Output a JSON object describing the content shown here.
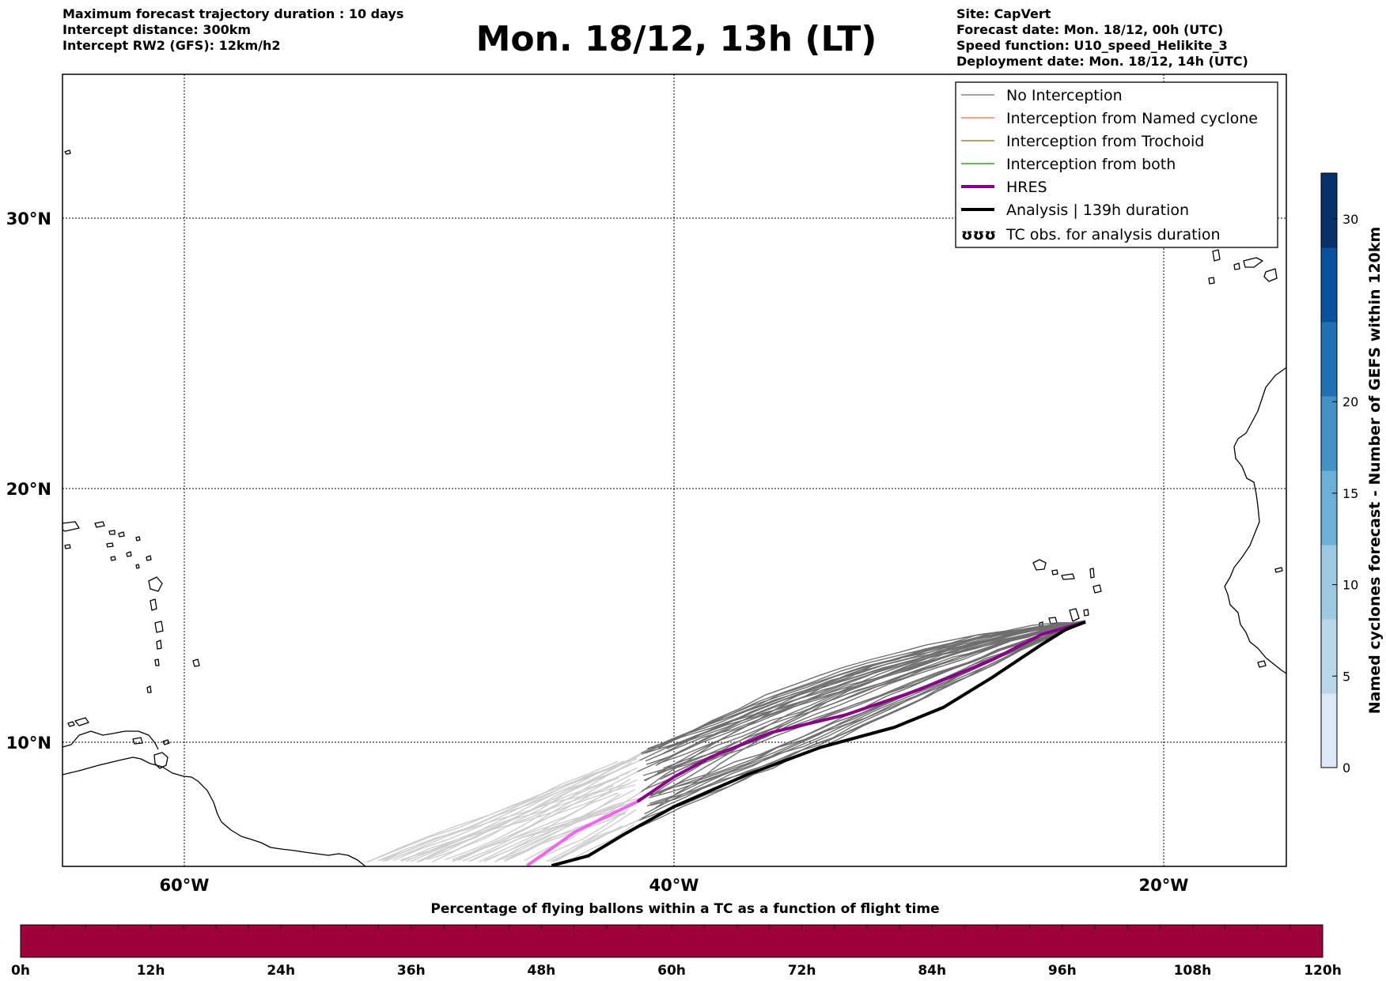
{
  "header_left": {
    "line1": "Maximum forecast trajectory duration : 10 days",
    "line2": "Intercept distance: 300km",
    "line3": "Intercept RW2 (GFS):  12km/h2"
  },
  "title": "Mon. 18/12, 13h (LT)",
  "header_right": {
    "line1": "Site: CapVert",
    "line2": "Forecast date: Mon. 18/12, 00h (UTC)",
    "line3": "Speed function: U10_speed_Helikite_3",
    "line4": "Deployment date: Mon. 18/12, 14h (UTC)"
  },
  "map": {
    "lon_range": [
      -65,
      -15
    ],
    "lat_range": [
      5,
      35
    ],
    "lat_ticks": [
      "30°N",
      "20°N",
      "10°N"
    ],
    "lon_ticks": [
      "60°W",
      "40°W",
      "20°W"
    ],
    "grid": true
  },
  "legend": {
    "placement": "top-right",
    "items": [
      {
        "label": "No Interception",
        "color": "#808080"
      },
      {
        "label": "Interception from Named cyclone",
        "color": "#ff7f50"
      },
      {
        "label": "Interception from Trochoid",
        "color": "#9a8a2a"
      },
      {
        "label": "Interception from both",
        "color": "#2ca02c"
      },
      {
        "label": "HRES",
        "color": "#8b008b"
      },
      {
        "label": "Analysis | 139h duration",
        "color": "#000000"
      },
      {
        "label": "TC obs. for analysis duration",
        "icon": "cyclone-symbols-icon",
        "symbol": "ʊʊʊ"
      }
    ]
  },
  "colorbar_right": {
    "title": "Named cyclones forecast - Number of GEFS within 120km",
    "ticks": [
      "0",
      "5",
      "10",
      "15",
      "20",
      "30"
    ],
    "colors": [
      "#dbe9f6",
      "#bad6eb",
      "#9ecae1",
      "#6baed6",
      "#4292c6",
      "#2171b5",
      "#08519c",
      "#08306b"
    ]
  },
  "colorbar_bottom": {
    "title": "Percentage of flying ballons within a TC as a function of flight time",
    "ticks": [
      "0h",
      "12h",
      "24h",
      "36h",
      "48h",
      "60h",
      "72h",
      "84h",
      "96h",
      "108h",
      "120h"
    ],
    "color": "#9e003a"
  },
  "trajectories": {
    "start": [
      -23.2,
      14.8
    ],
    "hres": [
      [
        -23.2,
        14.8
      ],
      [
        -25,
        14.3
      ],
      [
        -27,
        13.3
      ],
      [
        -30,
        12.1
      ],
      [
        -33,
        11.1
      ],
      [
        -36,
        10.4
      ],
      [
        -38.5,
        9.4
      ],
      [
        -40,
        8.6
      ],
      [
        -41.5,
        7.6
      ],
      [
        -44,
        6.4
      ],
      [
        -46,
        5.0
      ]
    ],
    "analysis": [
      [
        -23.2,
        14.8
      ],
      [
        -24,
        14.5
      ],
      [
        -25,
        13.9
      ],
      [
        -27,
        12.6
      ],
      [
        -29,
        11.4
      ],
      [
        -31,
        10.6
      ],
      [
        -34,
        9.8
      ],
      [
        -37,
        8.7
      ],
      [
        -40,
        7.4
      ],
      [
        -42,
        6.3
      ],
      [
        -43.5,
        5.4
      ],
      [
        -45,
        5.0
      ]
    ]
  }
}
